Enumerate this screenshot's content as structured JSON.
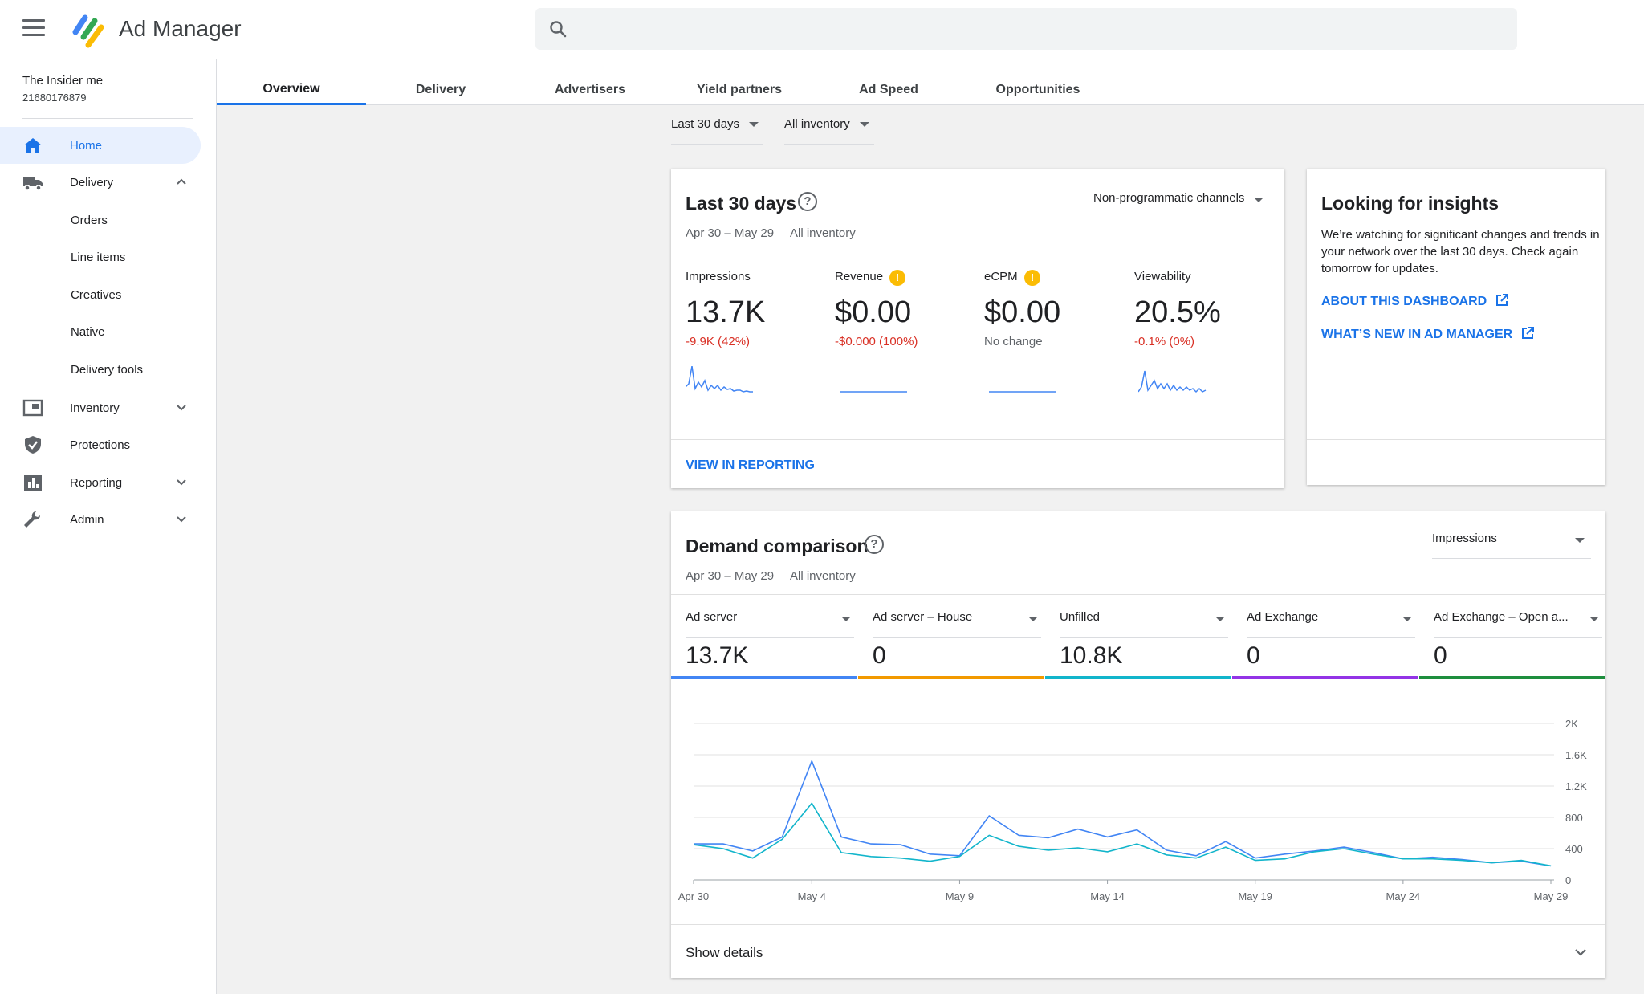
{
  "app": {
    "title": "Ad Manager"
  },
  "search": {
    "placeholder": ""
  },
  "network": {
    "name": "The Insider me",
    "id": "21680176879"
  },
  "sidebar": {
    "items": [
      {
        "label": "Home",
        "icon": "home-icon",
        "active": true
      },
      {
        "label": "Delivery",
        "icon": "truck-icon",
        "expanded": true
      },
      {
        "label": "Inventory",
        "icon": "inventory-icon"
      },
      {
        "label": "Protections",
        "icon": "shield-icon"
      },
      {
        "label": "Reporting",
        "icon": "bar-chart-icon"
      },
      {
        "label": "Admin",
        "icon": "wrench-icon"
      }
    ],
    "delivery_sub": [
      "Orders",
      "Line items",
      "Creatives",
      "Native",
      "Delivery tools"
    ]
  },
  "tabs": [
    "Overview",
    "Delivery",
    "Advertisers",
    "Yield partners",
    "Ad Speed",
    "Opportunities"
  ],
  "filters": {
    "date_range": "Last 30 days",
    "inventory": "All inventory"
  },
  "summary_card": {
    "title": "Last 30 days",
    "channel": "Non-programmatic channels",
    "date_range": "Apr 30 – May 29",
    "inventory": "All inventory",
    "metrics": [
      {
        "label": "Impressions",
        "value": "13.7K",
        "change": "-9.9K (42%)",
        "change_color": "#d93025",
        "warning": false
      },
      {
        "label": "Revenue",
        "value": "$0.00",
        "change": "-$0.000 (100%)",
        "change_color": "#d93025",
        "warning": true
      },
      {
        "label": "eCPM",
        "value": "$0.00",
        "change": "No change",
        "change_color": "#5f6368",
        "warning": true
      },
      {
        "label": "Viewability",
        "value": "20.5%",
        "change": "-0.1% (0%)",
        "change_color": "#d93025",
        "warning": false
      }
    ],
    "view_link": "VIEW IN REPORTING"
  },
  "insights_card": {
    "title": "Looking for insights",
    "text": "We’re watching for significant changes and trends in your network over the last 30 days. Check again tomorrow for updates.",
    "link1": "ABOUT THIS DASHBOARD",
    "link2": "WHAT’S NEW IN AD MANAGER"
  },
  "demand_card": {
    "title": "Demand comparison",
    "metric": "Impressions",
    "date_range": "Apr 30 – May 29",
    "inventory": "All inventory",
    "columns": [
      {
        "label": "Ad server",
        "value": "13.7K",
        "color": "#4285f4"
      },
      {
        "label": "Ad server – House",
        "value": "0",
        "color": "#f29900"
      },
      {
        "label": "Unfilled",
        "value": "10.8K",
        "color": "#12b5cb"
      },
      {
        "label": "Ad Exchange",
        "value": "0",
        "color": "#9334e6"
      },
      {
        "label": "Ad Exchange – Open a...",
        "value": "0",
        "color": "#1e8e3e"
      }
    ],
    "show_details": "Show details"
  },
  "chart_data": {
    "type": "line",
    "x": [
      "Apr 30",
      "May 1",
      "May 2",
      "May 3",
      "May 4",
      "May 5",
      "May 6",
      "May 7",
      "May 8",
      "May 9",
      "May 10",
      "May 11",
      "May 12",
      "May 13",
      "May 14",
      "May 15",
      "May 16",
      "May 17",
      "May 18",
      "May 19",
      "May 20",
      "May 21",
      "May 22",
      "May 23",
      "May 24",
      "May 25",
      "May 26",
      "May 27",
      "May 28",
      "May 29"
    ],
    "xticks": [
      "Apr 30",
      "May 4",
      "May 9",
      "May 14",
      "May 19",
      "May 24",
      "May 29"
    ],
    "ylim": [
      0,
      2000
    ],
    "yticks": [
      "0",
      "400",
      "800",
      "1.2K",
      "1.6K",
      "2K"
    ],
    "ytick_values": [
      0,
      400,
      800,
      1200,
      1600,
      2000
    ],
    "grid": true,
    "series": [
      {
        "color": "#4285f4",
        "values": [
          460,
          460,
          370,
          550,
          1520,
          550,
          460,
          450,
          330,
          310,
          820,
          570,
          540,
          650,
          550,
          640,
          380,
          310,
          490,
          280,
          330,
          370,
          420,
          350,
          270,
          290,
          260,
          220,
          240,
          180
        ]
      },
      {
        "color": "#12b5cb",
        "values": [
          450,
          400,
          280,
          520,
          980,
          350,
          300,
          280,
          240,
          300,
          570,
          430,
          380,
          410,
          360,
          460,
          320,
          280,
          420,
          250,
          270,
          360,
          400,
          330,
          270,
          270,
          250,
          220,
          250,
          180
        ]
      }
    ]
  }
}
